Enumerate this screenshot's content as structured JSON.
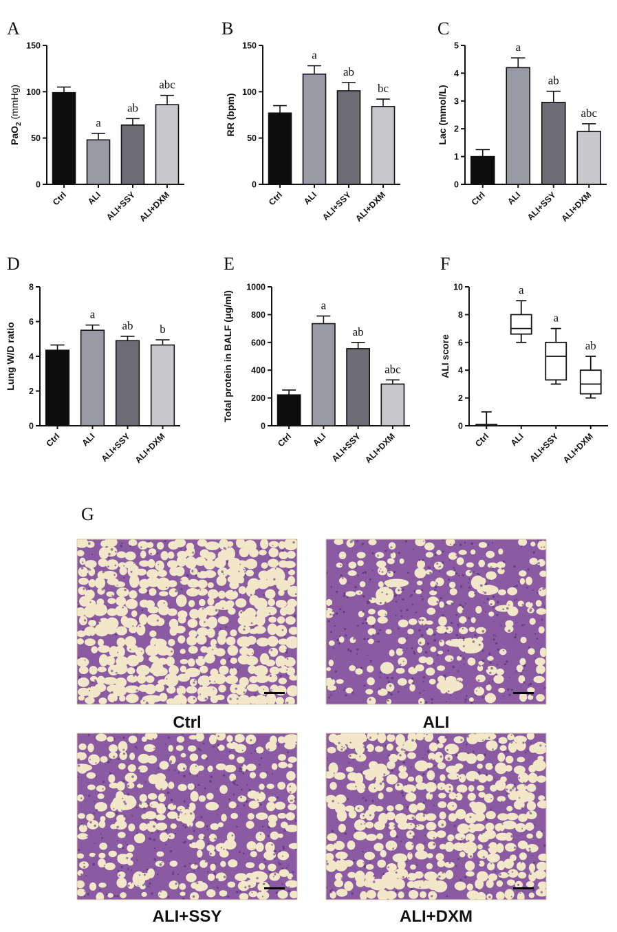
{
  "colors": {
    "bar_colors": [
      "#0d0d0d",
      "#9a9aa6",
      "#6d6d73",
      "#c8c8cc"
    ],
    "tissue_background": "#f3e7c9",
    "tissue_stain": "#8a5aa3"
  },
  "chart_data": [
    {
      "panel": "A",
      "type": "bar",
      "categories": [
        "Ctrl",
        "ALI",
        "ALI+SSY",
        "ALI+DXM"
      ],
      "values": [
        99,
        48,
        64,
        86
      ],
      "errors": [
        6,
        7,
        7,
        10
      ],
      "annotations": [
        "",
        "a",
        "ab",
        "abc"
      ],
      "ylabel_main": "PaO",
      "ylabel_sub": "2",
      "ylabel_unit": " (mmHg)",
      "yticks": [
        "0",
        "50",
        "100",
        "150"
      ],
      "ylim": [
        0,
        150
      ]
    },
    {
      "panel": "B",
      "type": "bar",
      "categories": [
        "Ctrl",
        "ALI",
        "ALI+SSY",
        "ALI+DXM"
      ],
      "values": [
        77,
        119,
        101,
        84
      ],
      "errors": [
        8,
        9,
        9,
        8
      ],
      "annotations": [
        "",
        "a",
        "ab",
        "bc"
      ],
      "ylabel": "RR (bpm)",
      "yticks": [
        "0",
        "50",
        "100",
        "150"
      ],
      "ylim": [
        0,
        150
      ]
    },
    {
      "panel": "C",
      "type": "bar",
      "categories": [
        "Ctrl",
        "ALI",
        "ALI+SSY",
        "ALI+DXM"
      ],
      "values": [
        1.0,
        4.2,
        2.95,
        1.9
      ],
      "errors": [
        0.25,
        0.35,
        0.4,
        0.28
      ],
      "annotations": [
        "",
        "a",
        "ab",
        "abc"
      ],
      "ylabel": "Lac (mmol/L)",
      "yticks": [
        "0",
        "1",
        "2",
        "3",
        "4",
        "5"
      ],
      "ylim": [
        0,
        5
      ]
    },
    {
      "panel": "D",
      "type": "bar",
      "categories": [
        "Ctrl",
        "ALI",
        "ALI+SSY",
        "ALI+DXM"
      ],
      "values": [
        4.35,
        5.5,
        4.9,
        4.65
      ],
      "errors": [
        0.3,
        0.3,
        0.25,
        0.3
      ],
      "annotations": [
        "",
        "a",
        "ab",
        "b"
      ],
      "ylabel": "Lung W/D ratio",
      "yticks": [
        "0",
        "2",
        "4",
        "6",
        "8"
      ],
      "ylim": [
        0,
        8
      ]
    },
    {
      "panel": "E",
      "type": "bar",
      "categories": [
        "Ctrl",
        "ALI",
        "ALI+SSY",
        "ALI+DXM"
      ],
      "values": [
        222,
        735,
        555,
        300
      ],
      "errors": [
        35,
        55,
        45,
        30
      ],
      "annotations": [
        "",
        "a",
        "ab",
        "abc"
      ],
      "ylabel": "Total protein in BALF (μg/ml)",
      "yticks": [
        "0",
        "200",
        "400",
        "600",
        "800",
        "1000"
      ],
      "ylim": [
        0,
        1000
      ]
    },
    {
      "panel": "F",
      "type": "box",
      "categories": [
        "Ctrl",
        "ALI",
        "ALI+SSY",
        "ALI+DXM"
      ],
      "boxes": [
        {
          "min": 0,
          "q1": 0,
          "median": 0,
          "q3": 0.1,
          "max": 1
        },
        {
          "min": 6,
          "q1": 6.6,
          "median": 7,
          "q3": 8,
          "max": 9
        },
        {
          "min": 3,
          "q1": 3.3,
          "median": 5,
          "q3": 6,
          "max": 7
        },
        {
          "min": 2,
          "q1": 2.3,
          "median": 3,
          "q3": 4,
          "max": 5
        }
      ],
      "annotations": [
        "",
        "a",
        "a",
        "ab"
      ],
      "ylabel": "ALI score",
      "yticks": [
        "0",
        "2",
        "4",
        "6",
        "8",
        "10"
      ],
      "ylim": [
        0,
        10
      ]
    }
  ],
  "histology": {
    "panel": "G",
    "images": [
      {
        "label": "Ctrl",
        "severity": 0.1
      },
      {
        "label": "ALI",
        "severity": 0.85
      },
      {
        "label": "ALI+SSY",
        "severity": 0.6
      },
      {
        "label": "ALI+DXM",
        "severity": 0.3
      }
    ]
  }
}
